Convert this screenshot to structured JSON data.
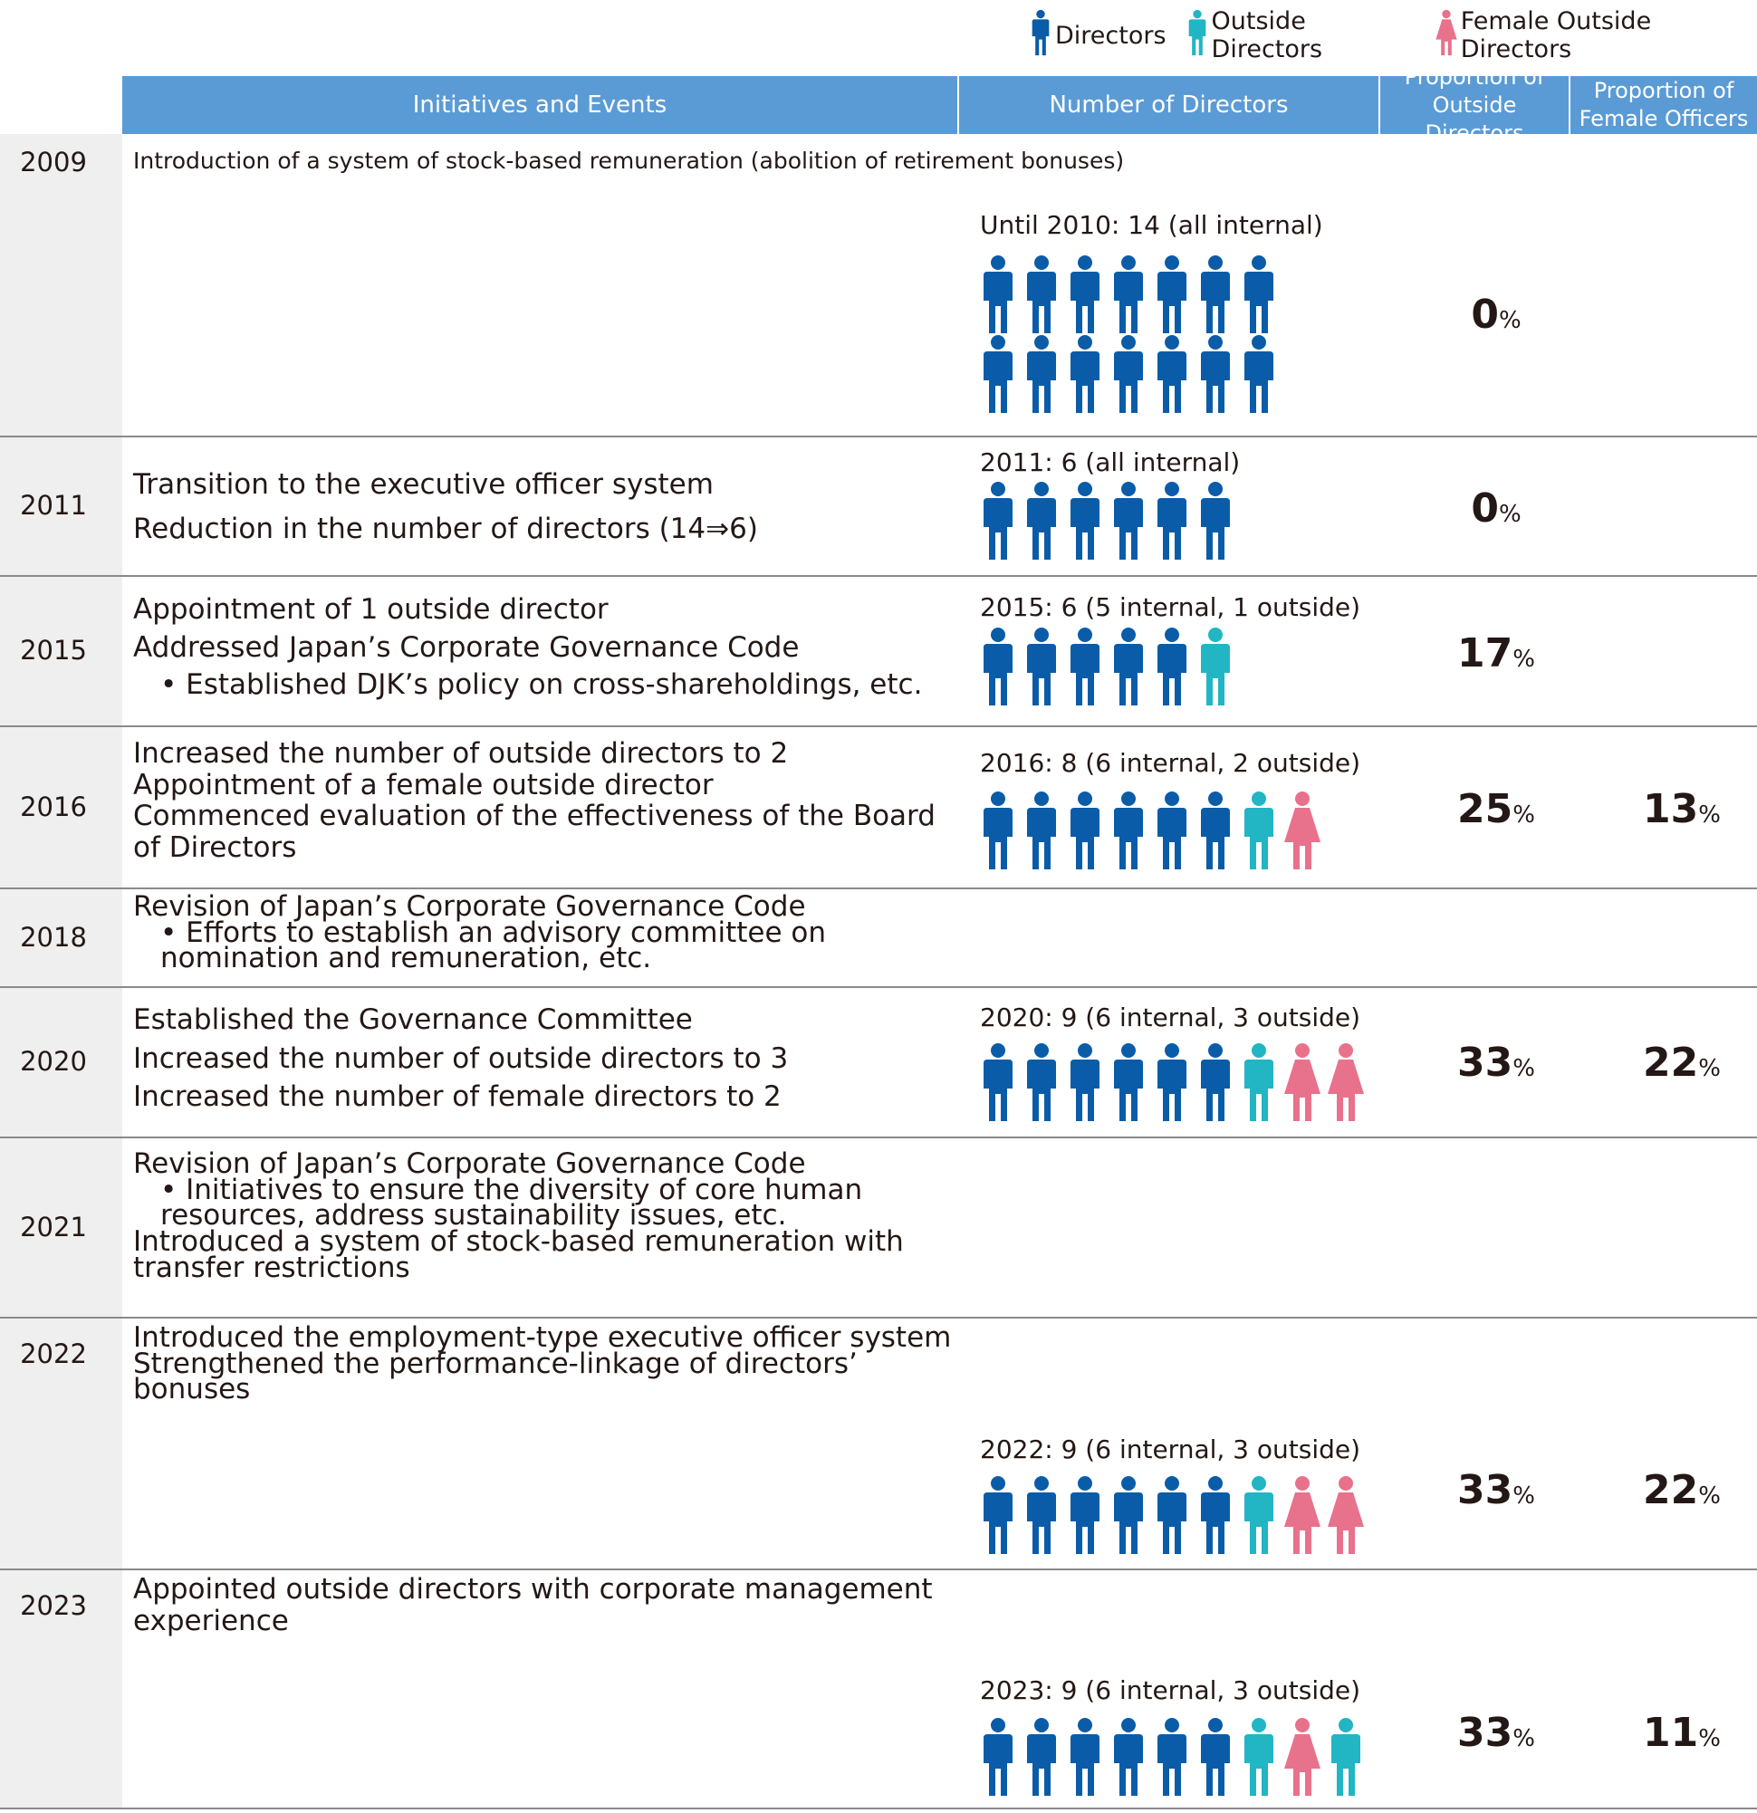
{
  "legend": [
    {
      "icon": "director-icon",
      "label": "Directors"
    },
    {
      "icon": "outside-director-icon",
      "label": "Outside Directors"
    },
    {
      "icon": "female-outside-director-icon",
      "label": "Female Outside Directors"
    }
  ],
  "colors": {
    "director": "#0a5ca8",
    "outside": "#22b5c4",
    "female": "#e8728b",
    "header": "#5b9bd5"
  },
  "columns": {
    "events": "Initiatives and Events",
    "number": "Number of Directors",
    "outside_line1": "Proportion of",
    "outside_line2": "Outside Directors",
    "female_line1": "Proportion of",
    "female_line2": "Female Officers"
  },
  "percent_sign": "%",
  "rows": [
    {
      "year": "2009",
      "events": [
        "Introduction of a system of stock-based remuneration (abolition of retirement bonuses)"
      ],
      "count_label": "Until 2010: 14 (all internal)",
      "icons": [
        "d",
        "d",
        "d",
        "d",
        "d",
        "d",
        "d",
        "d",
        "d",
        "d",
        "d",
        "d",
        "d",
        "d"
      ],
      "outside_pct": "0",
      "female_pct": ""
    },
    {
      "year": "2011",
      "events": [
        "Transition to the executive officer system",
        "Reduction in the number of directors (14⇒6)"
      ],
      "count_label": "2011: 6 (all internal)",
      "icons": [
        "d",
        "d",
        "d",
        "d",
        "d",
        "d"
      ],
      "outside_pct": "0",
      "female_pct": ""
    },
    {
      "year": "2015",
      "events": [
        "Appointment of 1 outside director",
        "Addressed Japan’s Corporate Governance Code",
        "• Established DJK’s policy on cross-shareholdings, etc."
      ],
      "count_label": "2015: 6 (5 internal, 1 outside)",
      "icons": [
        "d",
        "d",
        "d",
        "d",
        "d",
        "o"
      ],
      "outside_pct": "17",
      "female_pct": ""
    },
    {
      "year": "2016",
      "events": [
        "Increased the number of outside directors to 2",
        "Appointment of a female outside director",
        "Commenced evaluation of the effectiveness of the Board",
        "of Directors"
      ],
      "count_label": "2016: 8 (6 internal, 2 outside)",
      "icons": [
        "d",
        "d",
        "d",
        "d",
        "d",
        "d",
        "o",
        "f"
      ],
      "outside_pct": "25",
      "female_pct": "13"
    },
    {
      "year": "2018",
      "events": [
        "Revision of Japan’s Corporate Governance Code",
        "• Efforts to establish an advisory committee on",
        "nomination and remuneration, etc."
      ],
      "count_label": "",
      "icons": [],
      "outside_pct": "",
      "female_pct": ""
    },
    {
      "year": "2020",
      "events": [
        "Established the Governance Committee",
        "Increased the number of outside directors to 3",
        "Increased the number of female directors to 2"
      ],
      "count_label": "2020: 9 (6 internal, 3 outside)",
      "icons": [
        "d",
        "d",
        "d",
        "d",
        "d",
        "d",
        "o",
        "f",
        "f"
      ],
      "outside_pct": "33",
      "female_pct": "22"
    },
    {
      "year": "2021",
      "events": [
        "Revision of Japan’s Corporate Governance Code",
        "• Initiatives to ensure the diversity of core human",
        "resources, address sustainability issues, etc.",
        "Introduced a system of stock-based remuneration with",
        "transfer restrictions"
      ],
      "count_label": "",
      "icons": [],
      "outside_pct": "",
      "female_pct": ""
    },
    {
      "year": "2022",
      "events": [
        "Introduced the employment-type executive officer system",
        "Strengthened the performance-linkage of directors’",
        "bonuses"
      ],
      "count_label": "2022: 9 (6 internal, 3 outside)",
      "icons": [
        "d",
        "d",
        "d",
        "d",
        "d",
        "d",
        "o",
        "f",
        "f"
      ],
      "outside_pct": "33",
      "female_pct": "22"
    },
    {
      "year": "2023",
      "events": [
        "Appointed outside directors with corporate management",
        "experience"
      ],
      "count_label": "2023: 9 (6 internal, 3 outside)",
      "icons": [
        "d",
        "d",
        "d",
        "d",
        "d",
        "d",
        "o",
        "f",
        "o"
      ],
      "outside_pct": "33",
      "female_pct": "11"
    }
  ]
}
